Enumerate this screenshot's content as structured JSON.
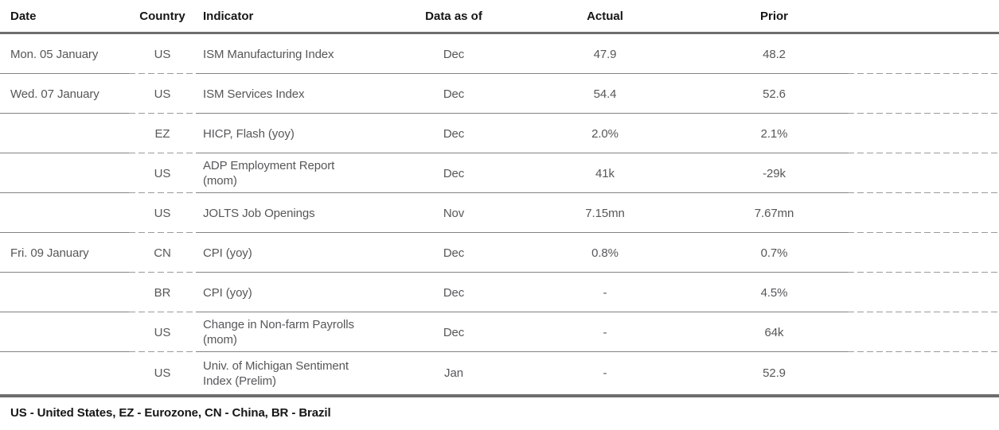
{
  "table": {
    "columns": {
      "date": "Date",
      "country": "Country",
      "indicator": "Indicator",
      "data_as_of": "Data as of",
      "actual": "Actual",
      "prior": "Prior"
    },
    "rows": [
      {
        "date": "Mon. 05 January",
        "country": "US",
        "indicator": "ISM Manufacturing Index",
        "data_as_of": "Dec",
        "actual": "47.9",
        "prior": "48.2"
      },
      {
        "date": "Wed. 07 January",
        "country": "US",
        "indicator": "ISM Services Index",
        "data_as_of": "Dec",
        "actual": "54.4",
        "prior": "52.6"
      },
      {
        "date": "",
        "country": "EZ",
        "indicator": "HICP, Flash (yoy)",
        "data_as_of": "Dec",
        "actual": "2.0%",
        "prior": "2.1%"
      },
      {
        "date": "",
        "country": "US",
        "indicator": "ADP Employment Report",
        "indicator_line2": "(mom)",
        "data_as_of": "Dec",
        "actual": "41k",
        "prior": "-29k"
      },
      {
        "date": "",
        "country": "US",
        "indicator": "JOLTS Job Openings",
        "data_as_of": "Nov",
        "actual": "7.15mn",
        "prior": "7.67mn"
      },
      {
        "date": "Fri. 09 January",
        "country": "CN",
        "indicator": "CPI (yoy)",
        "data_as_of": "Dec",
        "actual": "0.8%",
        "prior": "0.7%"
      },
      {
        "date": "",
        "country": "BR",
        "indicator": "CPI (yoy)",
        "data_as_of": "Dec",
        "actual": "-",
        "prior": "4.5%"
      },
      {
        "date": "",
        "country": "US",
        "indicator": "Change in Non-farm Payrolls",
        "indicator_line2": "(mom)",
        "data_as_of": "Dec",
        "actual": "-",
        "prior": "64k"
      },
      {
        "date": "",
        "country": "US",
        "indicator": "Univ. of Michigan Sentiment",
        "indicator_line2": "Index (Prelim)",
        "data_as_of": "Jan",
        "actual": "-",
        "prior": "52.9"
      }
    ]
  },
  "footer": {
    "legend": "US - United States, EZ - Eurozone, CN - China, BR - Brazil"
  },
  "colors": {
    "header_text": "#161616",
    "body_text": "#57575a",
    "thick_rule": "#6d6d6d",
    "solid_rule": "#828282",
    "dashed_rule": "#9a9a9a",
    "background": "#ffffff"
  }
}
